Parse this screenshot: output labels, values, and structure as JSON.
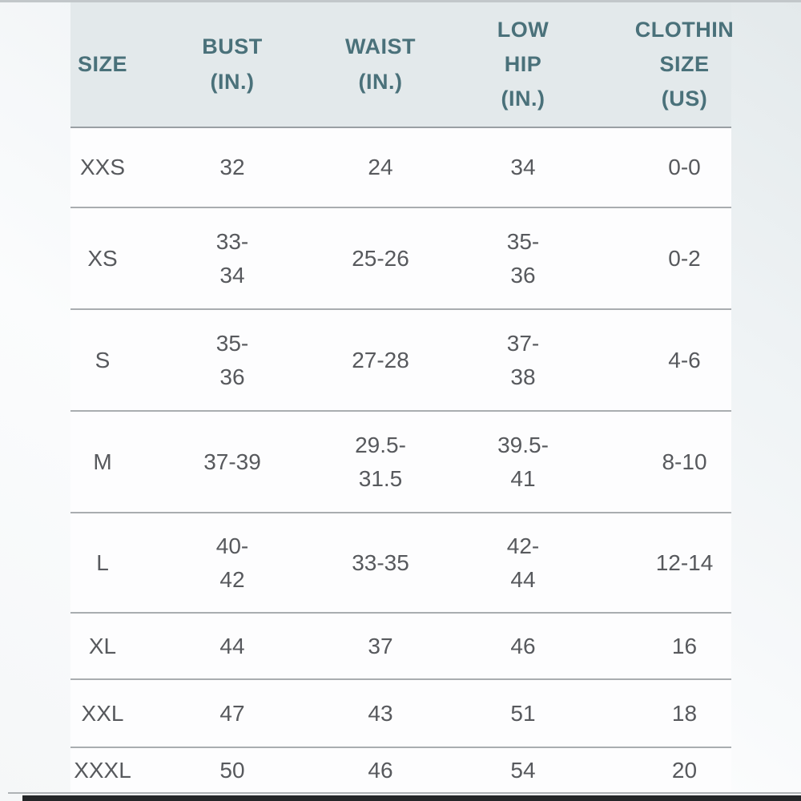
{
  "table": {
    "headers": [
      {
        "id": "size",
        "label": "SIZE"
      },
      {
        "id": "bust",
        "label": "BUST\n(IN.)"
      },
      {
        "id": "waist",
        "label": "WAIST\n(IN.)"
      },
      {
        "id": "low_hip",
        "label": "LOW\nHIP\n(IN.)"
      },
      {
        "id": "clothing_size",
        "label": "CLOTHIN\nSIZE\n(US)"
      }
    ],
    "rows": [
      {
        "size": "XXS",
        "bust": "32",
        "waist": "24",
        "low_hip": "34",
        "clothing_size": "0-0"
      },
      {
        "size": "XS",
        "bust": "33-\n34",
        "waist": "25-26",
        "low_hip": "35-\n36",
        "clothing_size": "0-2"
      },
      {
        "size": "S",
        "bust": "35-\n36",
        "waist": "27-28",
        "low_hip": "37-\n38",
        "clothing_size": "4-6"
      },
      {
        "size": "M",
        "bust": "37-39",
        "waist": "29.5-\n31.5",
        "low_hip": "39.5-\n41",
        "clothing_size": "8-10"
      },
      {
        "size": "L",
        "bust": "40-\n42",
        "waist": "33-35",
        "low_hip": "42-\n44",
        "clothing_size": "12-14"
      },
      {
        "size": "XL",
        "bust": "44",
        "waist": "37",
        "low_hip": "46",
        "clothing_size": "16"
      },
      {
        "size": "XXL",
        "bust": "47",
        "waist": "43",
        "low_hip": "51",
        "clothing_size": "18"
      },
      {
        "size": "XXXL",
        "bust": "50",
        "waist": "46",
        "low_hip": "54",
        "clothing_size": "20"
      }
    ]
  },
  "chart_data": {
    "type": "table",
    "columns": [
      "SIZE",
      "BUST (IN.)",
      "WAIST (IN.)",
      "LOW HIP (IN.)",
      "CLOTHIN SIZE (US)"
    ],
    "rows": [
      [
        "XXS",
        "32",
        "24",
        "34",
        "0-0"
      ],
      [
        "XS",
        "33-34",
        "25-26",
        "35-36",
        "0-2"
      ],
      [
        "S",
        "35-36",
        "27-28",
        "37-38",
        "4-6"
      ],
      [
        "M",
        "37-39",
        "29.5-31.5",
        "39.5-41",
        "8-10"
      ],
      [
        "L",
        "40-42",
        "33-35",
        "42-44",
        "12-14"
      ],
      [
        "XL",
        "44",
        "37",
        "46",
        "16"
      ],
      [
        "XXL",
        "47",
        "43",
        "51",
        "18"
      ],
      [
        "XXXL",
        "50",
        "46",
        "54",
        "20"
      ]
    ]
  },
  "colors": {
    "header_text": "#4a717a",
    "body_text": "#57595d",
    "header_bg": "#e3e9eb",
    "row_bg": "#fdfdfe",
    "row_line": "#a9adb0",
    "header_line": "#9aa0a4",
    "page_bg_top_right": "#e3e9eb",
    "page_bg_light": "#fbfcfd",
    "top_edge": "#c2c7ca",
    "bottom_line": "#aeb2b5",
    "bottom_bar": "#242628"
  }
}
